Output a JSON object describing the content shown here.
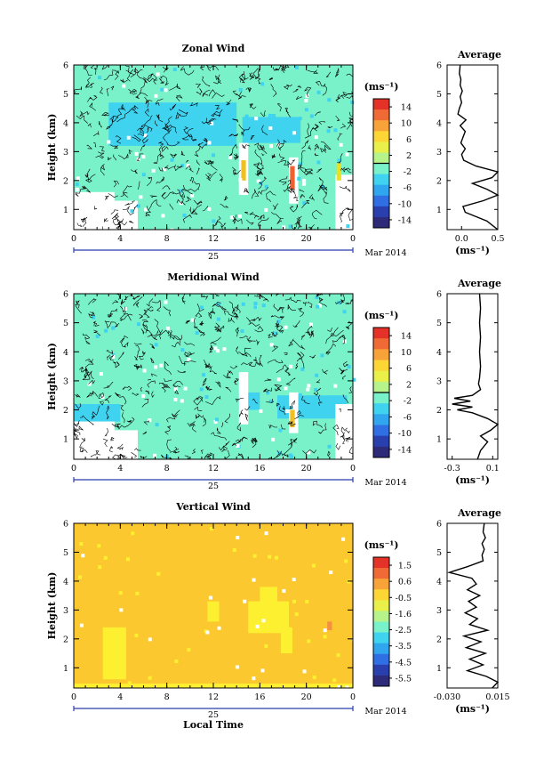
{
  "chart_data": [
    {
      "type": "heatmap",
      "title": "Zonal Wind",
      "ylabel": "Height (km)",
      "ylim": [
        0.3,
        6
      ],
      "yticks": [
        1,
        2,
        3,
        4,
        5,
        6
      ],
      "xlim": [
        0,
        24
      ],
      "xticks": [
        "0",
        "4",
        "8",
        "12",
        "16",
        "20",
        "0"
      ],
      "date_day": "25",
      "date_month": "Mar 2014",
      "colorbar": {
        "unit": "(ms⁻¹)",
        "range": [
          -15,
          15
        ],
        "ticks": [
          "14",
          "10",
          "6",
          "2",
          "-2",
          "-6",
          "-10",
          "-14"
        ],
        "marker_value": 0
      },
      "dominant_color": "#7af2c9",
      "patches": [
        {
          "t0": 3.0,
          "t1": 14.0,
          "h0": 3.2,
          "h1": 4.7,
          "color": "#3fd3f0"
        },
        {
          "t0": 14.5,
          "t1": 19.5,
          "h0": 3.3,
          "h1": 4.2,
          "color": "#3fd3f0"
        },
        {
          "t0": 0.0,
          "t1": 3.5,
          "h0": 0.3,
          "h1": 1.6,
          "color": "#ffffff"
        },
        {
          "t0": 3.0,
          "t1": 5.5,
          "h0": 0.3,
          "h1": 1.3,
          "color": "#ffffff"
        },
        {
          "t0": 22.5,
          "t1": 24.0,
          "h0": 0.3,
          "h1": 2.2,
          "color": "#ffffff"
        },
        {
          "t0": 14.2,
          "t1": 15.0,
          "h0": 1.5,
          "h1": 3.3,
          "color": "#ffffff"
        },
        {
          "t0": 18.5,
          "t1": 19.3,
          "h0": 1.2,
          "h1": 2.8,
          "color": "#ffffff"
        },
        {
          "t0": 14.4,
          "t1": 14.8,
          "h0": 2.0,
          "h1": 2.7,
          "color": "#f0c020"
        },
        {
          "t0": 18.6,
          "t1": 19.0,
          "h0": 1.7,
          "h1": 2.5,
          "color": "#f06030"
        },
        {
          "t0": 22.6,
          "t1": 23.0,
          "h0": 2.0,
          "h1": 2.6,
          "color": "#e8e020"
        }
      ],
      "contour_count": 320,
      "average": {
        "title": "Average",
        "xlim": [
          -0.2,
          0.5
        ],
        "xticks": [
          "0.0",
          "0.5"
        ],
        "xtick_values": [
          0.0,
          0.5
        ],
        "xlabel": "(ms⁻¹)",
        "heights": [
          0.3,
          0.6,
          0.9,
          1.1,
          1.3,
          1.5,
          1.7,
          1.9,
          2.1,
          2.3,
          2.5,
          2.7,
          2.9,
          3.1,
          3.3,
          3.5,
          3.7,
          3.9,
          4.1,
          4.3,
          4.5,
          4.7,
          4.9,
          5.1,
          5.3,
          5.5,
          5.7,
          6.0
        ],
        "values": [
          0.55,
          0.35,
          0.05,
          0.02,
          0.3,
          0.52,
          0.35,
          0.15,
          0.42,
          0.58,
          0.2,
          0.03,
          0.0,
          0.05,
          -0.01,
          0.02,
          0.05,
          -0.02,
          0.06,
          -0.05,
          -0.03,
          0.0,
          -0.02,
          0.01,
          -0.02,
          -0.01,
          -0.03,
          -0.02
        ]
      }
    },
    {
      "type": "heatmap",
      "title": "Meridional Wind",
      "ylabel": "Height (km)",
      "ylim": [
        0.3,
        6
      ],
      "yticks": [
        1,
        2,
        3,
        4,
        5,
        6
      ],
      "xlim": [
        0,
        24
      ],
      "xticks": [
        "0",
        "4",
        "8",
        "12",
        "16",
        "20",
        "0"
      ],
      "date_day": "25",
      "date_month": "Mar 2014",
      "colorbar": {
        "unit": "(ms⁻¹)",
        "range": [
          -15,
          15
        ],
        "ticks": [
          "14",
          "10",
          "6",
          "2",
          "-2",
          "-6",
          "-10",
          "-14"
        ],
        "marker_value": 0
      },
      "dominant_color": "#7af2c9",
      "patches": [
        {
          "t0": 0.0,
          "t1": 4.0,
          "h0": 1.6,
          "h1": 2.2,
          "color": "#3fd3f0"
        },
        {
          "t0": 17.5,
          "t1": 23.5,
          "h0": 1.7,
          "h1": 2.5,
          "color": "#3fd3f0"
        },
        {
          "t0": 14.2,
          "t1": 16.0,
          "h0": 2.0,
          "h1": 2.6,
          "color": "#3fd3f0"
        },
        {
          "t0": 0.0,
          "t1": 3.5,
          "h0": 0.3,
          "h1": 1.6,
          "color": "#ffffff"
        },
        {
          "t0": 3.0,
          "t1": 5.5,
          "h0": 0.3,
          "h1": 1.3,
          "color": "#ffffff"
        },
        {
          "t0": 22.5,
          "t1": 24.0,
          "h0": 0.3,
          "h1": 2.2,
          "color": "#ffffff"
        },
        {
          "t0": 14.2,
          "t1": 15.0,
          "h0": 1.5,
          "h1": 3.3,
          "color": "#ffffff"
        },
        {
          "t0": 18.5,
          "t1": 19.3,
          "h0": 1.2,
          "h1": 2.6,
          "color": "#ffffff"
        },
        {
          "t0": 18.6,
          "t1": 19.0,
          "h0": 1.4,
          "h1": 2.0,
          "color": "#f0c020"
        }
      ],
      "contour_count": 320,
      "average": {
        "title": "Average",
        "xlim": [
          -0.35,
          0.15
        ],
        "xticks": [
          "-0.3",
          "0.1"
        ],
        "xtick_values": [
          -0.3,
          0.1
        ],
        "xlabel": "(ms⁻¹)",
        "heights": [
          0.3,
          0.6,
          0.9,
          1.1,
          1.3,
          1.5,
          1.7,
          1.9,
          2.0,
          2.1,
          2.2,
          2.3,
          2.4,
          2.5,
          2.7,
          2.9,
          3.1,
          3.5,
          4.0,
          4.5,
          5.0,
          5.5,
          6.0
        ],
        "values": [
          -0.05,
          -0.02,
          0.05,
          -0.02,
          0.08,
          0.15,
          0.05,
          -0.1,
          -0.25,
          -0.1,
          -0.3,
          -0.12,
          -0.28,
          -0.1,
          -0.02,
          -0.04,
          -0.03,
          -0.02,
          -0.03,
          -0.02,
          -0.03,
          -0.02,
          -0.03
        ]
      }
    },
    {
      "type": "heatmap",
      "title": "Vertical Wind",
      "ylabel": "Height (km)",
      "xlabel": "Local Time",
      "ylim": [
        0.3,
        6
      ],
      "yticks": [
        1,
        2,
        3,
        4,
        5,
        6
      ],
      "xlim": [
        0,
        24
      ],
      "xticks": [
        "0",
        "4",
        "8",
        "12",
        "16",
        "20",
        "0"
      ],
      "date_day": "25",
      "date_month": "Mar 2014",
      "colorbar": {
        "unit": "(ms⁻¹)",
        "range": [
          -6,
          2
        ],
        "ticks": [
          "1.5",
          "0.6",
          "-0.5",
          "-1.6",
          "-2.5",
          "-3.5",
          "-4.5",
          "-5.5"
        ]
      },
      "dominant_color": "#fbc830",
      "patches": [
        {
          "t0": 15.0,
          "t1": 18.5,
          "h0": 2.2,
          "h1": 3.3,
          "color": "#fdf030"
        },
        {
          "t0": 16.0,
          "t1": 17.5,
          "h0": 3.0,
          "h1": 3.8,
          "color": "#fdf030"
        },
        {
          "t0": 2.5,
          "t1": 4.5,
          "h0": 0.6,
          "h1": 2.4,
          "color": "#fdf030"
        },
        {
          "t0": 17.8,
          "t1": 18.8,
          "h0": 1.5,
          "h1": 2.4,
          "color": "#fdf030"
        },
        {
          "t0": 11.5,
          "t1": 12.5,
          "h0": 2.6,
          "h1": 3.3,
          "color": "#fdf030"
        },
        {
          "t0": 0.0,
          "t1": 24.0,
          "h0": 0.3,
          "h1": 0.45,
          "color": "#fdf030"
        },
        {
          "t0": 21.8,
          "t1": 22.2,
          "h0": 2.3,
          "h1": 2.6,
          "color": "#f49040"
        }
      ],
      "contour_count": 0,
      "average": {
        "title": "Average",
        "xlim": [
          -0.03,
          0.015
        ],
        "xticks": [
          "-0.030",
          "0.015"
        ],
        "xtick_values": [
          -0.03,
          0.015
        ],
        "xlabel": "(ms⁻¹)",
        "heights": [
          0.3,
          0.5,
          0.7,
          0.9,
          1.1,
          1.3,
          1.5,
          1.7,
          1.9,
          2.1,
          2.3,
          2.5,
          2.7,
          2.9,
          3.1,
          3.3,
          3.5,
          3.7,
          3.9,
          4.1,
          4.3,
          4.5,
          4.7,
          4.9,
          5.1,
          5.3,
          5.5,
          5.7,
          6.0
        ],
        "values": [
          0.01,
          0.015,
          0.005,
          -0.012,
          0.002,
          -0.01,
          0.004,
          -0.013,
          0.0,
          -0.015,
          0.006,
          -0.01,
          -0.003,
          -0.014,
          -0.004,
          -0.011,
          -0.001,
          -0.012,
          -0.004,
          -0.008,
          -0.028,
          -0.012,
          0.002,
          0.001,
          0.003,
          0.001,
          0.004,
          0.002,
          0.003
        ]
      }
    }
  ]
}
